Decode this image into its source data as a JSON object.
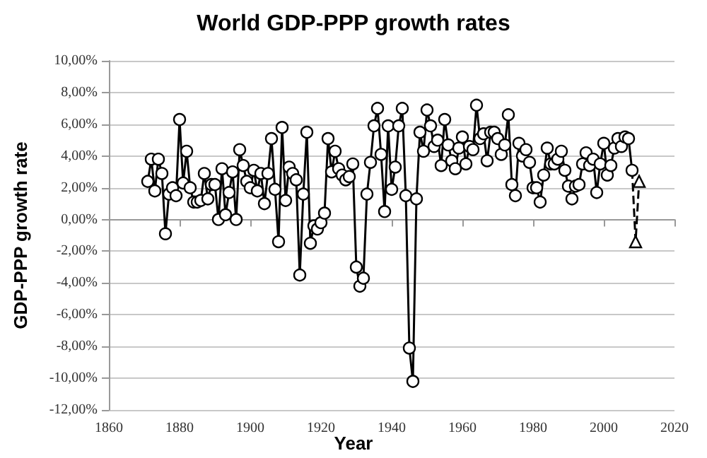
{
  "chart_data": {
    "type": "line",
    "title": "World GDP-PPP growth rates",
    "xlabel": "Year",
    "ylabel": "GDP-PPP growth rate",
    "xlim": [
      1860,
      2020
    ],
    "xticks": [
      1860,
      1880,
      1900,
      1920,
      1940,
      1960,
      1980,
      2000,
      2020
    ],
    "ylim": [
      -12,
      10
    ],
    "yticks": [
      {
        "value": -12,
        "label": "-12,00%"
      },
      {
        "value": -10,
        "label": "-10,00%"
      },
      {
        "value": -8,
        "label": "-8,00%"
      },
      {
        "value": -6,
        "label": "-6,00%"
      },
      {
        "value": -4,
        "label": "-4,00%"
      },
      {
        "value": -2,
        "label": "-2,00%"
      },
      {
        "value": 0,
        "label": "0,00%"
      },
      {
        "value": 2,
        "label": "2,00%"
      },
      {
        "value": 4,
        "label": "4,00%"
      },
      {
        "value": 6,
        "label": "6,00%"
      },
      {
        "value": 8,
        "label": "8,00%"
      },
      {
        "value": 10,
        "label": "10,00%"
      }
    ],
    "grid": "y",
    "series": [
      {
        "color": "#000000",
        "marker": "circle",
        "line_style": "solid",
        "x": [
          1871,
          1872,
          1873,
          1874,
          1875,
          1876,
          1877,
          1878,
          1879,
          1880,
          1881,
          1882,
          1883,
          1884,
          1885,
          1886,
          1887,
          1888,
          1889,
          1890,
          1891,
          1892,
          1893,
          1894,
          1895,
          1896,
          1897,
          1898,
          1899,
          1900,
          1901,
          1902,
          1903,
          1904,
          1905,
          1906,
          1907,
          1908,
          1909,
          1910,
          1911,
          1912,
          1913,
          1914,
          1915,
          1916,
          1917,
          1918,
          1919,
          1920,
          1921,
          1922,
          1923,
          1924,
          1925,
          1926,
          1927,
          1928,
          1929,
          1930,
          1931,
          1932,
          1933,
          1934,
          1935,
          1936,
          1937,
          1938,
          1939,
          1940,
          1941,
          1942,
          1943,
          1944,
          1945,
          1946,
          1947,
          1948,
          1949,
          1950,
          1951,
          1952,
          1953,
          1954,
          1955,
          1956,
          1957,
          1958,
          1959,
          1960,
          1961,
          1962,
          1963,
          1964,
          1965,
          1966,
          1967,
          1968,
          1969,
          1970,
          1971,
          1972,
          1973,
          1974,
          1975,
          1976,
          1977,
          1978,
          1979,
          1980,
          1981,
          1982,
          1983,
          1984,
          1985,
          1986,
          1987,
          1988,
          1989,
          1990,
          1991,
          1992,
          1993,
          1994,
          1995,
          1996,
          1997,
          1998,
          1999,
          2000,
          2001,
          2002,
          2003,
          2004,
          2005,
          2006,
          2007,
          2008
        ],
        "values": [
          2.4,
          3.8,
          1.8,
          3.8,
          2.9,
          -0.9,
          1.6,
          2.0,
          1.5,
          6.3,
          2.3,
          4.3,
          2.0,
          1.1,
          1.1,
          1.2,
          2.9,
          1.3,
          2.2,
          2.2,
          0.0,
          3.2,
          0.3,
          1.7,
          3.0,
          0.0,
          4.4,
          3.4,
          2.4,
          2.0,
          3.1,
          1.8,
          2.9,
          1.0,
          2.9,
          5.1,
          1.9,
          -1.4,
          5.8,
          1.2,
          3.3,
          2.9,
          2.5,
          -3.5,
          1.6,
          5.5,
          -1.5,
          -0.4,
          -0.6,
          -0.2,
          0.4,
          5.1,
          3.0,
          4.3,
          3.2,
          2.8,
          2.5,
          2.7,
          3.5,
          -3.0,
          -4.2,
          -3.7,
          1.6,
          3.6,
          5.9,
          7.0,
          4.1,
          0.5,
          5.9,
          1.9,
          3.3,
          5.9,
          7.0,
          1.5,
          -8.1,
          -10.2,
          1.3,
          5.5,
          4.3,
          6.9,
          5.9,
          4.6,
          5.0,
          3.4,
          6.3,
          4.7,
          3.7,
          3.2,
          4.5,
          5.2,
          3.5,
          4.6,
          4.4,
          7.2,
          5.1,
          5.4,
          3.7,
          5.5,
          5.5,
          5.1,
          4.1,
          4.7,
          6.6,
          2.2,
          1.5,
          4.8,
          4.0,
          4.4,
          3.6,
          2.0,
          2.0,
          1.1,
          2.8,
          4.5,
          3.5,
          3.5,
          3.8,
          4.3,
          3.1,
          2.1,
          1.3,
          2.1,
          2.2,
          3.5,
          4.2,
          3.4,
          3.8,
          1.7,
          3.5,
          4.8,
          2.8,
          3.4,
          4.5,
          5.1,
          4.6,
          5.2,
          5.1,
          3.1
        ]
      },
      {
        "color": "#000000",
        "marker": "triangle",
        "line_style": "dashed",
        "x": [
          2008,
          2009,
          2010
        ],
        "values": [
          3.1,
          -1.4,
          2.4
        ]
      }
    ]
  }
}
